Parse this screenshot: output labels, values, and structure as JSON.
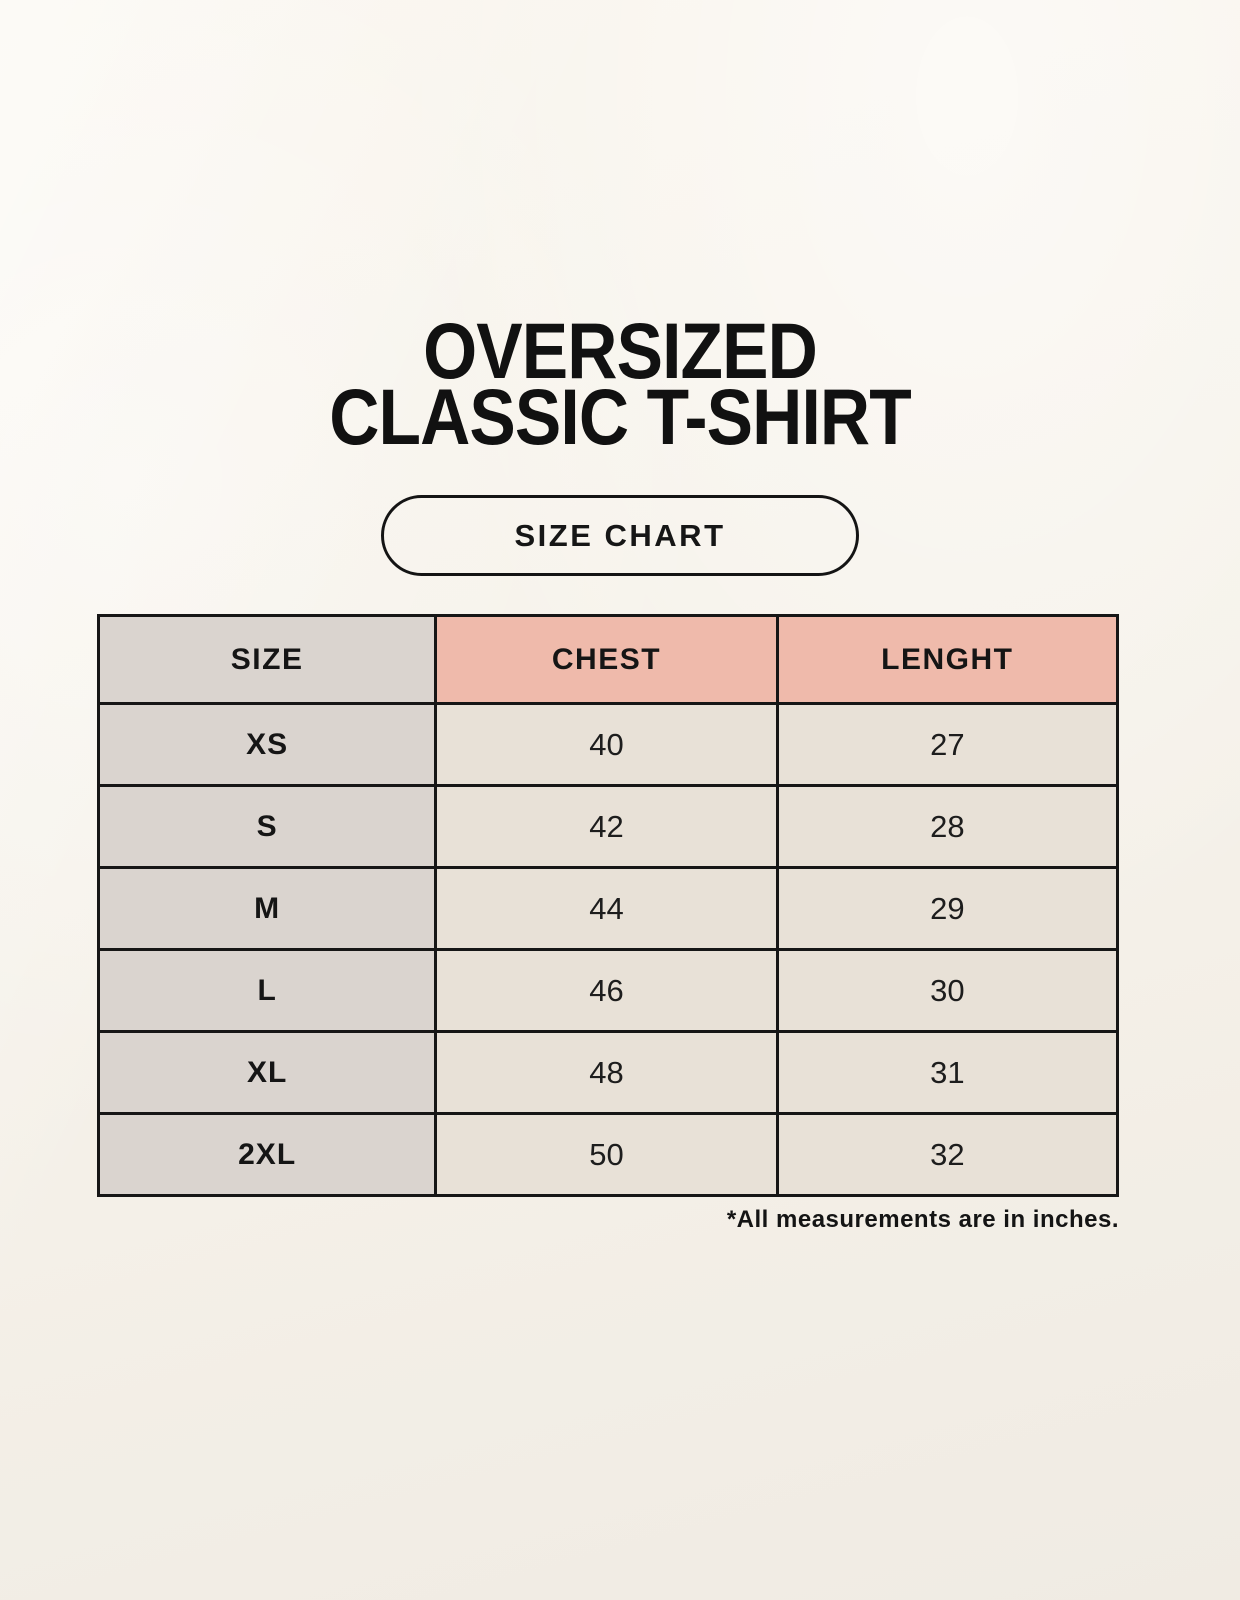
{
  "page": {
    "title_line1": "OVERSIZED",
    "title_line2": "CLASSIC T-SHIRT",
    "badge_label": "SIZE CHART",
    "footnote": "*All measurements are in inches."
  },
  "colors": {
    "ink": "#141414",
    "gray": "#dad4cf",
    "pink": "#efbaab",
    "cream": "#e8e1d7",
    "background_top": "#f9f5ed",
    "background_bottom": "#f0ebe3"
  },
  "chart_data": {
    "type": "table",
    "title": "OVERSIZED CLASSIC T-SHIRT — SIZE CHART",
    "columns": [
      "SIZE",
      "CHEST",
      "LENGHT"
    ],
    "units": "inches",
    "rows": [
      {
        "size": "XS",
        "chest": 40,
        "length": 27
      },
      {
        "size": "S",
        "chest": 42,
        "length": 28
      },
      {
        "size": "M",
        "chest": 44,
        "length": 29
      },
      {
        "size": "L",
        "chest": 46,
        "length": 30
      },
      {
        "size": "XL",
        "chest": 48,
        "length": 31
      },
      {
        "size": "2XL",
        "chest": 50,
        "length": 32
      }
    ]
  }
}
